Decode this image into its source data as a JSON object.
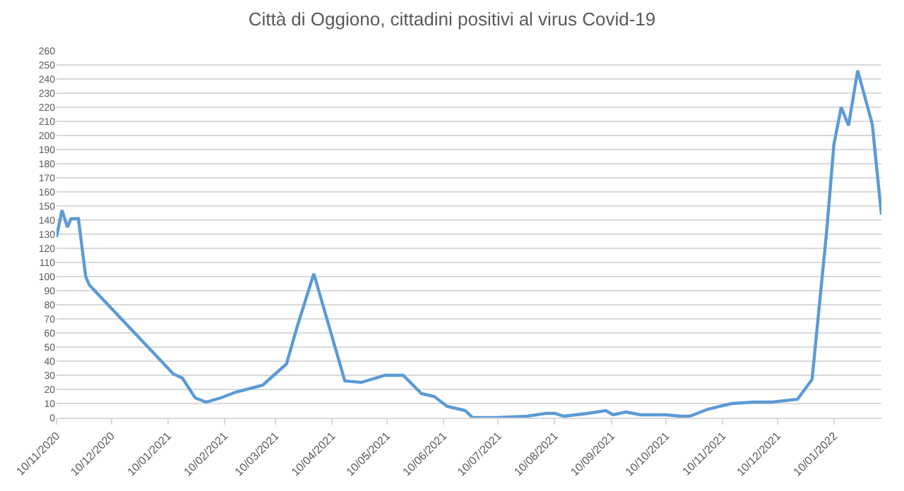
{
  "chart_data": {
    "type": "line",
    "title": "Città di Oggiono, cittadini positivi al virus Covid-19",
    "x": [
      "2020-11-10",
      "2020-11-13",
      "2020-11-16",
      "2020-11-18",
      "2020-11-22",
      "2020-11-26",
      "2020-11-28",
      "2021-01-13",
      "2021-01-18",
      "2021-01-25",
      "2021-01-31",
      "2021-02-08",
      "2021-02-16",
      "2021-03-03",
      "2021-03-09",
      "2021-03-16",
      "2021-03-22",
      "2021-03-31",
      "2021-04-17",
      "2021-04-26",
      "2021-05-09",
      "2021-05-19",
      "2021-05-29",
      "2021-06-05",
      "2021-06-12",
      "2021-06-22",
      "2021-06-26",
      "2021-07-09",
      "2021-07-26",
      "2021-08-05",
      "2021-08-10",
      "2021-08-15",
      "2021-08-28",
      "2021-09-07",
      "2021-09-11",
      "2021-09-18",
      "2021-09-26",
      "2021-10-10",
      "2021-10-18",
      "2021-10-23",
      "2021-11-02",
      "2021-11-15",
      "2021-11-27",
      "2021-12-07",
      "2021-12-21",
      "2021-12-29",
      "2022-01-06",
      "2022-01-10",
      "2022-01-14",
      "2022-01-18",
      "2022-01-23",
      "2022-01-31",
      "2022-02-05"
    ],
    "series": [
      {
        "color": "#5b9bd5",
        "values": [
          128,
          147,
          135,
          141,
          141,
          100,
          94,
          31,
          28,
          14,
          11,
          14,
          18,
          23,
          30,
          38,
          65,
          102,
          26,
          25,
          30,
          30,
          17,
          15,
          8,
          5,
          0,
          0,
          1,
          3,
          3,
          1,
          3,
          5,
          2,
          4,
          2,
          2,
          1,
          1,
          6,
          10,
          11,
          11,
          13,
          27,
          132,
          194,
          220,
          207,
          246,
          208,
          144
        ]
      }
    ],
    "xlim": [
      "2020-11-10",
      "2022-02-05"
    ],
    "xticks": [
      {
        "value": "2020-11-10",
        "label": "10/11/2020"
      },
      {
        "value": "2020-12-10",
        "label": "10/12/2020"
      },
      {
        "value": "2021-01-10",
        "label": "10/01/2021"
      },
      {
        "value": "2021-02-10",
        "label": "10/02/2021"
      },
      {
        "value": "2021-03-10",
        "label": "10/03/2021"
      },
      {
        "value": "2021-04-10",
        "label": "10/04/2021"
      },
      {
        "value": "2021-05-10",
        "label": "10/05/2021"
      },
      {
        "value": "2021-06-10",
        "label": "10/06/2021"
      },
      {
        "value": "2021-07-10",
        "label": "10/07/2021"
      },
      {
        "value": "2021-08-10",
        "label": "10/08/2021"
      },
      {
        "value": "2021-09-10",
        "label": "10/09/2021"
      },
      {
        "value": "2021-10-10",
        "label": "10/10/2021"
      },
      {
        "value": "2021-11-10",
        "label": "10/11/2021"
      },
      {
        "value": "2021-12-10",
        "label": "10/12/2021"
      },
      {
        "value": "2022-01-10",
        "label": "10/01/2022"
      }
    ],
    "ylim": [
      0,
      260
    ],
    "yticks": [
      0,
      10,
      20,
      30,
      40,
      50,
      60,
      70,
      80,
      90,
      100,
      110,
      120,
      130,
      140,
      150,
      160,
      170,
      180,
      190,
      200,
      210,
      220,
      230,
      240,
      250,
      260
    ],
    "grid": "y",
    "marker": "none",
    "line_style": "solid"
  }
}
